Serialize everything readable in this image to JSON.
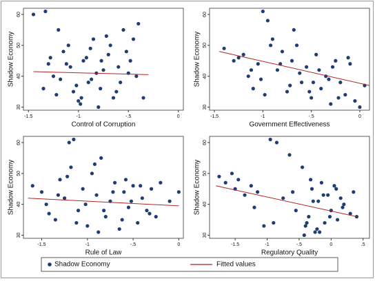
{
  "chart_data": [
    {
      "type": "scatter",
      "xlabel": "Control of Corruption",
      "ylabel": "Shadow Economy",
      "xlim": [
        -1.55,
        0.05
      ],
      "ylim": [
        29,
        62
      ],
      "xticks": [
        -1.5,
        -1,
        {
          "value": -0.5,
          "label": "-.5"
        },
        0
      ],
      "yticks": [
        30,
        40,
        50,
        60
      ],
      "series": [
        {
          "name": "Shadow Economy",
          "color": "#1f3d73",
          "x": [
            -1.45,
            -1.33,
            -1.35,
            -1.2,
            -1.15,
            -1.25,
            -1.3,
            -1.1,
            -1.05,
            -1.0,
            -0.95,
            -0.9,
            -0.85,
            -0.8,
            -0.75,
            -0.7,
            -0.65,
            -0.6,
            -0.55,
            -0.5,
            -0.45,
            -0.4,
            -0.35,
            -1.28,
            -1.18,
            -1.08,
            -0.98,
            -0.88,
            -0.78,
            -0.68,
            -0.58,
            -0.48,
            -1.22,
            -1.02,
            -0.92,
            -0.82,
            -0.72,
            -0.62,
            -0.52,
            -0.42,
            -1.12,
            -0.97,
            -0.87,
            -0.77
          ],
          "values": [
            60,
            61,
            36,
            55,
            48,
            40,
            44,
            50,
            35,
            32,
            45,
            38,
            52,
            30,
            42,
            47,
            33,
            43,
            55,
            41,
            52,
            57,
            33,
            46,
            39,
            43,
            31,
            49,
            36,
            50,
            38,
            45,
            34,
            37,
            46,
            41,
            53,
            35,
            48,
            40,
            44,
            33,
            39,
            45
          ]
        },
        {
          "name": "Fitted values",
          "type": "line",
          "color": "#b22222",
          "x": [
            -1.45,
            -0.3
          ],
          "values": [
            41.5,
            40.5
          ]
        }
      ]
    },
    {
      "type": "scatter",
      "xlabel": "Government Effectiveness",
      "ylabel": "Shadow Economy",
      "xlim": [
        -1.55,
        0.1
      ],
      "ylim": [
        29,
        62
      ],
      "xticks": [
        -1.5,
        -1,
        {
          "value": -0.5,
          "label": "-.5"
        },
        0
      ],
      "yticks": [
        30,
        40,
        50,
        60
      ],
      "series": [
        {
          "color": "#1f3d73",
          "x": [
            -1.4,
            -1.3,
            -1.2,
            -1.15,
            -1.1,
            -1.05,
            -1.0,
            -0.95,
            -0.9,
            -0.85,
            -0.8,
            -0.75,
            -0.7,
            -0.65,
            -0.6,
            -0.55,
            -0.5,
            -0.45,
            -0.4,
            -0.35,
            -0.3,
            -0.25,
            -0.2,
            -0.15,
            -0.1,
            -0.05,
            0.0,
            0.05,
            -1.25,
            -1.12,
            -1.02,
            -0.92,
            -0.82,
            -0.72,
            -0.62,
            -0.52,
            -0.42,
            -0.32,
            -0.22,
            -0.12,
            -0.98,
            -0.68,
            -0.48,
            -0.28
          ],
          "values": [
            49,
            45,
            47,
            40,
            36,
            44,
            61,
            58,
            52,
            42,
            48,
            35,
            45,
            50,
            38,
            43,
            33,
            47,
            36,
            40,
            31,
            45,
            38,
            34,
            44,
            32,
            30,
            37,
            46,
            42,
            39,
            50,
            44,
            37,
            41,
            35,
            42,
            39,
            33,
            46,
            34,
            55,
            38,
            43
          ]
        },
        {
          "type": "line",
          "color": "#b22222",
          "x": [
            -1.45,
            0.1
          ],
          "values": [
            48,
            37
          ]
        }
      ]
    },
    {
      "type": "scatter",
      "xlabel": "Rule of Law",
      "ylabel": "Shadow Economy",
      "xlim": [
        -1.7,
        0.05
      ],
      "ylim": [
        29,
        62
      ],
      "xticks": [
        -1.5,
        -1,
        {
          "value": -0.5,
          "label": "-.5"
        },
        0
      ],
      "yticks": [
        30,
        40,
        50,
        60
      ],
      "series": [
        {
          "color": "#1f3d73",
          "x": [
            -1.6,
            -1.5,
            -1.45,
            -1.35,
            -1.3,
            -1.25,
            -1.2,
            -1.15,
            -1.1,
            -1.05,
            -1.0,
            -0.95,
            -0.9,
            -0.85,
            -0.8,
            -0.75,
            -0.7,
            -0.65,
            -0.6,
            -0.55,
            -0.5,
            -0.45,
            -0.4,
            -0.35,
            -0.3,
            -0.25,
            -0.2,
            -0.1,
            0.0,
            -1.42,
            -1.32,
            -1.22,
            -1.12,
            -1.02,
            -0.92,
            -0.82,
            -0.72,
            -0.62,
            -0.52,
            -0.42,
            -0.32,
            -1.18,
            -0.88,
            -0.58
          ],
          "values": [
            46,
            44,
            40,
            35,
            48,
            42,
            60,
            61,
            38,
            45,
            33,
            50,
            43,
            55,
            36,
            41,
            47,
            32,
            44,
            39,
            46,
            34,
            42,
            38,
            45,
            36,
            47,
            41,
            44,
            37,
            43,
            49,
            34,
            40,
            53,
            38,
            44,
            35,
            41,
            46,
            37,
            52,
            31,
            48
          ]
        },
        {
          "type": "line",
          "color": "#b22222",
          "x": [
            -1.65,
            0.0
          ],
          "values": [
            42,
            39.5
          ]
        }
      ]
    },
    {
      "type": "scatter",
      "xlabel": "Regulatory Quality",
      "ylabel": "Shadow Economy",
      "xlim": [
        -1.9,
        0.6
      ],
      "ylim": [
        29,
        62
      ],
      "xticks": [
        -1.5,
        -1,
        {
          "value": -0.5,
          "label": "-.5"
        },
        0,
        {
          "value": 0.5,
          "label": ".5"
        }
      ],
      "yticks": [
        30,
        40,
        50,
        60
      ],
      "series": [
        {
          "color": "#1f3d73",
          "x": [
            -1.75,
            -1.65,
            -1.5,
            -1.45,
            -1.35,
            -1.25,
            -1.15,
            -1.05,
            -0.95,
            -0.85,
            -0.75,
            -0.65,
            -0.55,
            -0.45,
            -0.4,
            -0.35,
            -0.3,
            -0.25,
            -0.2,
            -0.15,
            -0.1,
            -0.05,
            0.0,
            0.05,
            0.1,
            0.15,
            0.2,
            0.3,
            0.35,
            0.4,
            -1.55,
            -1.2,
            -0.9,
            -0.6,
            -0.42,
            -0.32,
            -0.22,
            -0.12,
            -0.02,
            0.08,
            0.18,
            -0.38,
            -0.28,
            -0.18
          ],
          "values": [
            49,
            47,
            45,
            48,
            43,
            46,
            44,
            33,
            61,
            60,
            42,
            56,
            38,
            52,
            33,
            36,
            45,
            31,
            41,
            47,
            34,
            43,
            38,
            46,
            35,
            42,
            40,
            37,
            44,
            36,
            50,
            39,
            34,
            44,
            30,
            48,
            32,
            43,
            36,
            45,
            39,
            34,
            41,
            31
          ]
        },
        {
          "type": "line",
          "color": "#b22222",
          "x": [
            -1.8,
            0.4
          ],
          "values": [
            46,
            36
          ]
        }
      ]
    }
  ]
}
